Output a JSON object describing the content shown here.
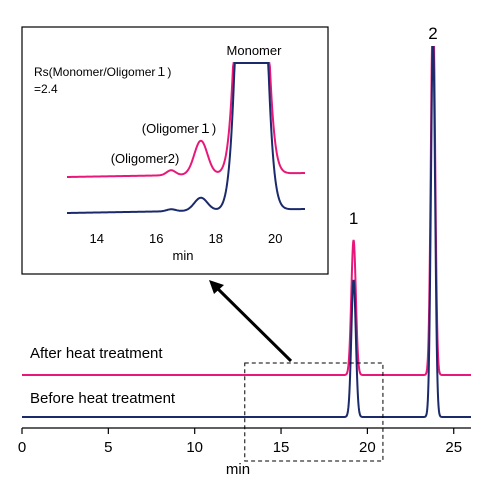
{
  "chart_data": [
    {
      "type": "line",
      "xlabel": "min",
      "xlim": [
        0,
        26
      ],
      "x_ticks": [
        0,
        5,
        10,
        15,
        20,
        25
      ],
      "series": [
        {
          "name": "After heat treatment",
          "color": "#e8187a"
        },
        {
          "name": "Before heat treatment",
          "color": "#1b2a6b"
        }
      ],
      "peaks": [
        {
          "label": "1",
          "x": 19.2
        },
        {
          "label": "2",
          "x": 23.8
        }
      ],
      "zoom_region_x": [
        12.9,
        20.9
      ]
    },
    {
      "type": "line",
      "xlabel": "min",
      "xlim": [
        13,
        21
      ],
      "x_ticks": [
        14,
        16,
        18,
        20
      ],
      "annotation_lines": [
        "Rs(Monomer/Oligomer１)",
        "=2.4"
      ],
      "peaks": [
        {
          "label": "Monomer",
          "x": 19.2
        },
        {
          "label": "(Oligomer１)",
          "x": 17.5
        },
        {
          "label": "(Oligomer2)",
          "x": 16.5
        }
      ],
      "series": [
        {
          "name": "After heat treatment",
          "color": "#e8187a"
        },
        {
          "name": "Before heat treatment",
          "color": "#1b2a6b"
        }
      ]
    }
  ]
}
